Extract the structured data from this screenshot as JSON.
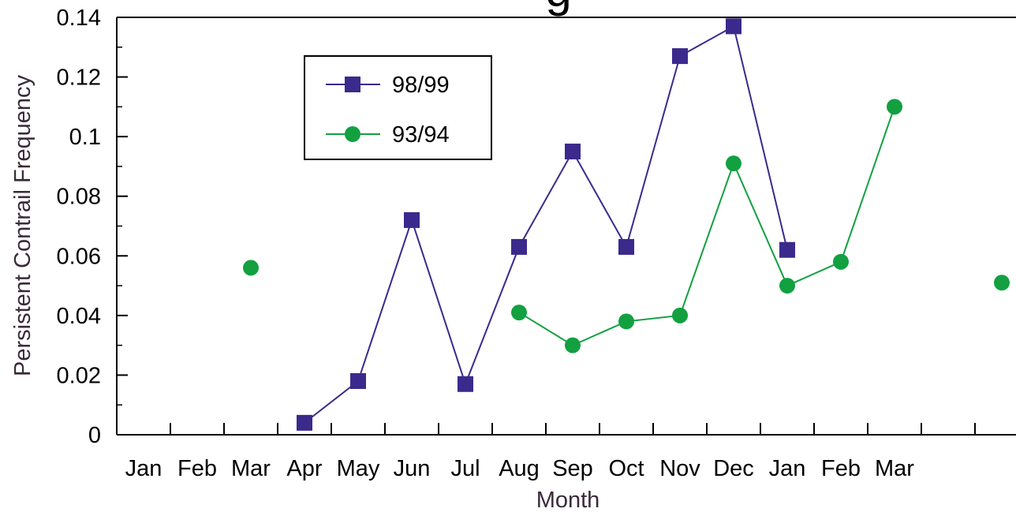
{
  "chart_data": {
    "type": "line",
    "title": "",
    "xlabel": "Month",
    "ylabel": "Persistent Contrail Frequency",
    "categories": [
      "Jan",
      "Feb",
      "Mar",
      "Apr",
      "May",
      "Jun",
      "Jul",
      "Aug",
      "Sep",
      "Oct",
      "Nov",
      "Dec",
      "Jan",
      "Feb",
      "Mar"
    ],
    "ylim": [
      0,
      0.14
    ],
    "yticks": [
      "0",
      "0.02",
      "0.04",
      "0.06",
      "0.08",
      "0.1",
      "0.12",
      "0.14"
    ],
    "grid": false,
    "legend_position": "top-left",
    "series": [
      {
        "name": "98/99",
        "color": "#3b2a8c",
        "marker": "square",
        "points": [
          {
            "x": 3.5,
            "y": 0.004
          },
          {
            "x": 4.5,
            "y": 0.018
          },
          {
            "x": 5.5,
            "y": 0.072
          },
          {
            "x": 6.5,
            "y": 0.017
          },
          {
            "x": 7.5,
            "y": 0.063
          },
          {
            "x": 8.5,
            "y": 0.095
          },
          {
            "x": 9.5,
            "y": 0.063
          },
          {
            "x": 10.5,
            "y": 0.127
          },
          {
            "x": 11.5,
            "y": 0.137
          },
          {
            "x": 12.5,
            "y": 0.062
          }
        ]
      },
      {
        "name": "93/94",
        "color": "#12a040",
        "marker": "circle",
        "points": [
          {
            "x": 2.5,
            "y": 0.056,
            "connected": false
          },
          {
            "x": 7.5,
            "y": 0.041
          },
          {
            "x": 8.5,
            "y": 0.03
          },
          {
            "x": 9.5,
            "y": 0.038
          },
          {
            "x": 10.5,
            "y": 0.04
          },
          {
            "x": 11.5,
            "y": 0.091
          },
          {
            "x": 12.5,
            "y": 0.05
          },
          {
            "x": 13.5,
            "y": 0.058
          },
          {
            "x": 14.5,
            "y": 0.11
          },
          {
            "x": 16.5,
            "y": 0.051,
            "connected": false
          }
        ]
      }
    ]
  }
}
